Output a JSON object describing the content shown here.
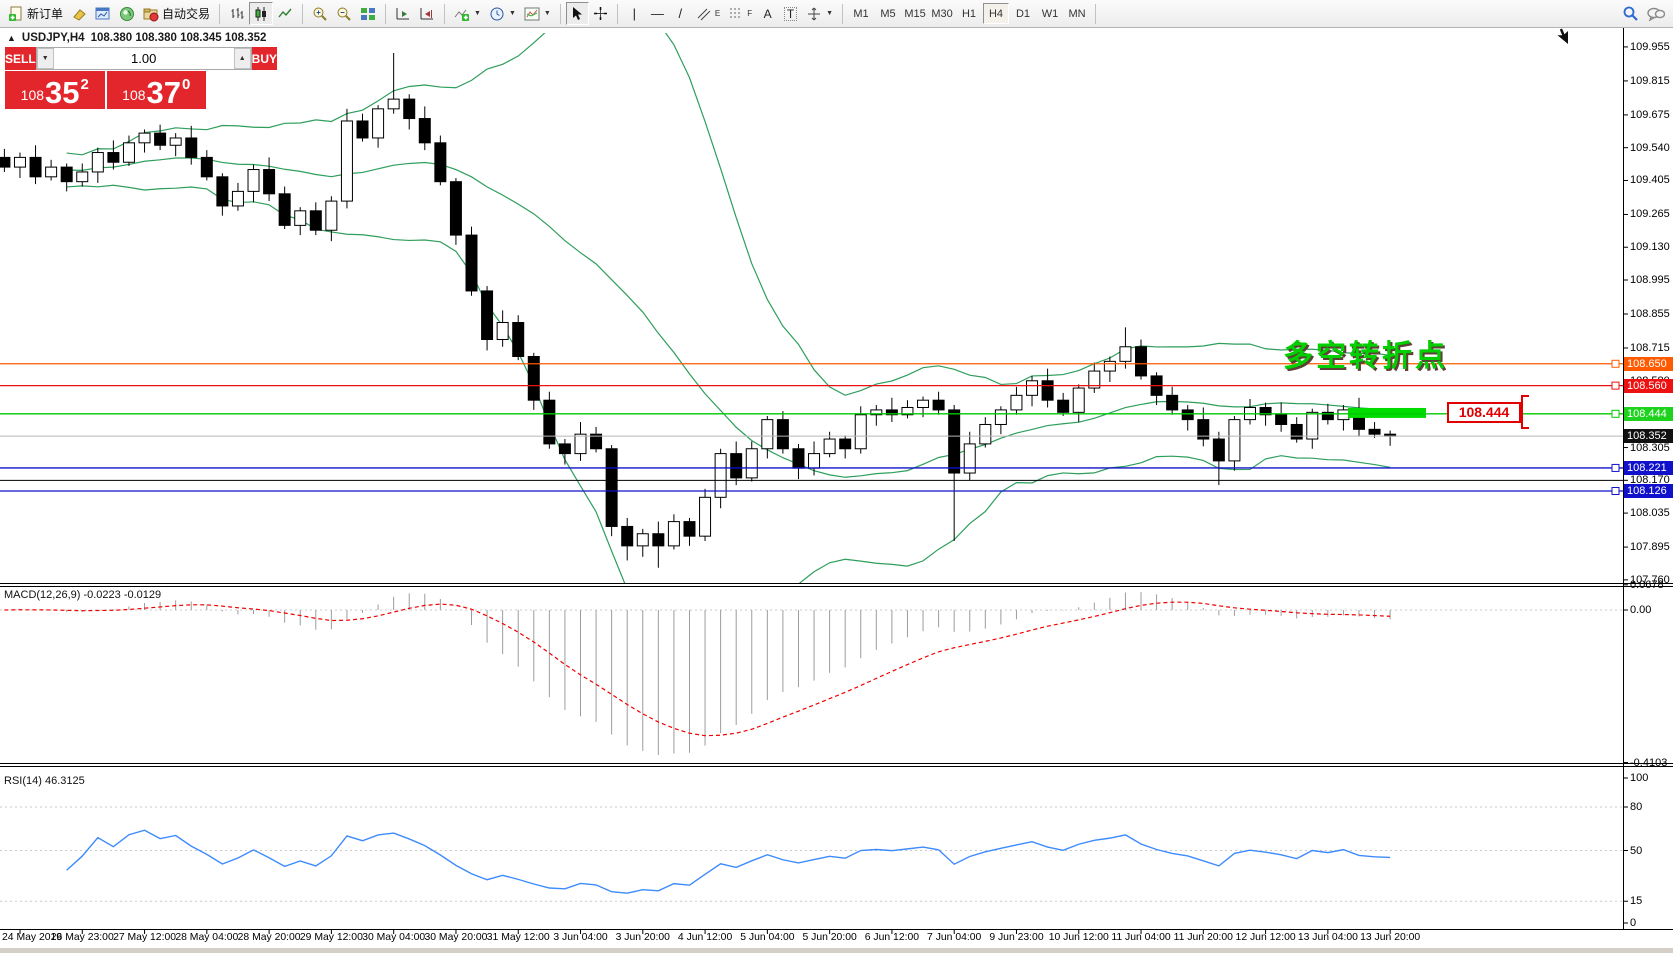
{
  "toolbar": {
    "new_order": "新订单",
    "autotrading": "自动交易",
    "text_tool": "A",
    "label_tool": "T",
    "channel_tag": "E",
    "fibo_tag": "F",
    "timeframes": [
      "M1",
      "M5",
      "M15",
      "M30",
      "H1",
      "H4",
      "D1",
      "W1",
      "MN"
    ],
    "active_timeframe": "H4"
  },
  "title": {
    "expand": "▲",
    "symbol": "USDJPY,H4",
    "ohlc": "108.380 108.380 108.345 108.352"
  },
  "trade": {
    "sell": "SELL",
    "buy": "BUY",
    "volume": "1.00",
    "sell_price": {
      "small": "108",
      "big": "35",
      "sup": "2"
    },
    "buy_price": {
      "small": "108",
      "big": "37",
      "sup": "0"
    }
  },
  "annotation": {
    "text": "多空转折点",
    "color": "#00cf00"
  },
  "callout": {
    "text": "108.444"
  },
  "price_axis": {
    "ticks": [
      "109.955",
      "109.815",
      "109.675",
      "109.540",
      "109.405",
      "109.265",
      "109.130",
      "108.995",
      "108.855",
      "108.715",
      "108.580",
      "108.305",
      "108.170",
      "108.035",
      "107.895",
      "107.760"
    ],
    "badges": [
      {
        "text": "108.650",
        "bg": "#ff5a00"
      },
      {
        "text": "108.560",
        "bg": "#ee1111"
      },
      {
        "text": "108.444",
        "bg": "#1ed31e"
      },
      {
        "text": "108.352",
        "bg": "#111111"
      },
      {
        "text": "108.221",
        "bg": "#1111cc"
      },
      {
        "text": "108.126",
        "bg": "#1111cc"
      }
    ]
  },
  "hlines": [
    {
      "price": 108.65,
      "color": "#ff5a00",
      "handle": true
    },
    {
      "price": 108.56,
      "color": "#ee1111",
      "handle": true
    },
    {
      "price": 108.444,
      "color": "#00c800",
      "handle": true
    },
    {
      "price": 108.352,
      "color": "#b8b8b8",
      "handle": false
    },
    {
      "price": 108.221,
      "color": "#1111cc",
      "handle": true
    },
    {
      "price": 108.17,
      "color": "#000000",
      "handle": false
    },
    {
      "price": 108.126,
      "color": "#1111cc",
      "handle": true
    }
  ],
  "macd": {
    "label": "MACD(12,26,9) -0.0223 -0.0129",
    "fast": 12,
    "slow": 26,
    "signal": 9,
    "value": -0.0223,
    "signal_value": -0.0129,
    "ticks": [
      "0.0678",
      "0.00",
      "-0.4103"
    ]
  },
  "rsi": {
    "label": "RSI(14) 46.3125",
    "period": 14,
    "value": 46.3125,
    "ticks": [
      "100",
      "80",
      "50",
      "15",
      "0"
    ],
    "levels": [
      80,
      50,
      15
    ]
  },
  "time_axis": [
    "24 May 2019",
    "26 May 23:00",
    "27 May 12:00",
    "28 May 04:00",
    "28 May 20:00",
    "29 May 12:00",
    "30 May 04:00",
    "30 May 20:00",
    "31 May 12:00",
    "3 Jun 04:00",
    "3 Jun 20:00",
    "4 Jun 12:00",
    "5 Jun 04:00",
    "5 Jun 20:00",
    "6 Jun 12:00",
    "7 Jun 04:00",
    "9 Jun 23:00",
    "10 Jun 12:00",
    "11 Jun 04:00",
    "11 Jun 20:00",
    "12 Jun 12:00",
    "13 Jun 04:00",
    "13 Jun 20:00"
  ],
  "chart_data": {
    "type": "candlestick",
    "symbol": "USDJPY",
    "period": "H4",
    "visible_price_range": [
      107.73,
      110.01
    ],
    "closes": [
      109.46,
      109.5,
      109.42,
      109.46,
      109.4,
      109.44,
      109.52,
      109.48,
      109.56,
      109.6,
      109.55,
      109.58,
      109.5,
      109.42,
      109.3,
      109.36,
      109.45,
      109.35,
      109.22,
      109.28,
      109.2,
      109.32,
      109.65,
      109.58,
      109.7,
      109.74,
      109.66,
      109.56,
      109.4,
      109.18,
      108.95,
      108.75,
      108.82,
      108.68,
      108.5,
      108.32,
      108.28,
      108.36,
      108.3,
      107.98,
      107.9,
      107.95,
      107.9,
      108.0,
      107.94,
      108.1,
      108.28,
      108.18,
      108.3,
      108.42,
      108.3,
      108.22,
      108.28,
      108.34,
      108.3,
      108.44,
      108.46,
      108.44,
      108.47,
      108.5,
      108.46,
      108.2,
      108.32,
      108.4,
      108.46,
      108.52,
      108.58,
      108.5,
      108.45,
      108.55,
      108.62,
      108.66,
      108.72,
      108.6,
      108.52,
      108.46,
      108.42,
      108.34,
      108.25,
      108.42,
      108.47,
      108.44,
      108.4,
      108.34,
      108.45,
      108.42,
      108.46,
      108.38,
      108.36,
      108.352
    ],
    "wick_overrides": {
      "25": {
        "h": 109.93
      },
      "40": {
        "l": 107.84
      },
      "42": {
        "l": 107.81
      },
      "61": {
        "l": 107.92
      },
      "72": {
        "h": 108.8
      },
      "78": {
        "l": 108.15
      }
    },
    "bollinger": {
      "period": 20,
      "deviation": 2,
      "color": "#2e9e5b"
    },
    "highlight_zone": {
      "price_top": 108.468,
      "price_bottom": 108.427,
      "color": "#00dc00"
    }
  }
}
